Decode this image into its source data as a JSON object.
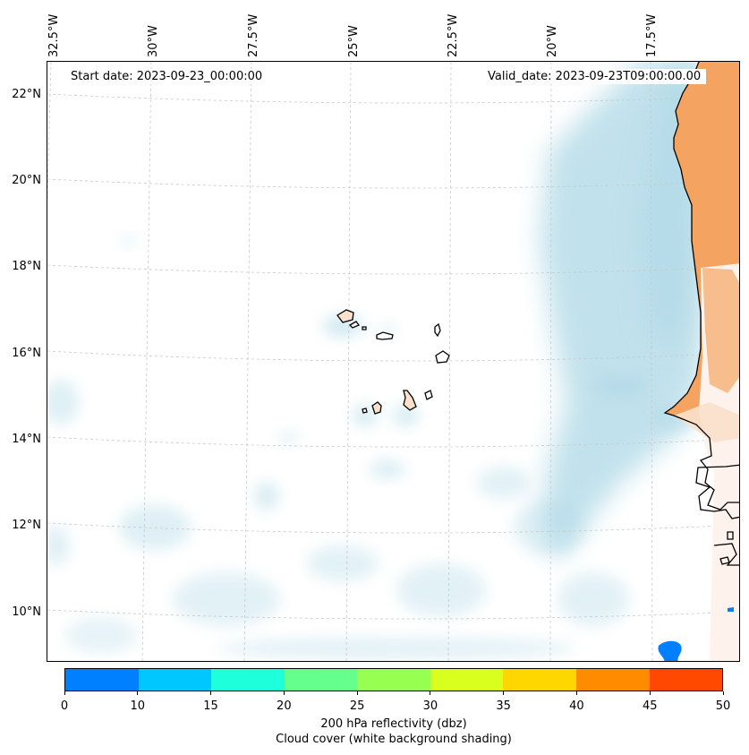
{
  "map": {
    "start_date_label": "Start date: 2023-09-23_00:00:00",
    "valid_date_label": "Valid_date: 2023-09-23T09:00:00.00",
    "lon_labels": [
      "32.5°W",
      "30°W",
      "27.5°W",
      "25°W",
      "22.5°W",
      "20°W",
      "17.5°W"
    ],
    "lat_labels": [
      "22°N",
      "20°N",
      "18°N",
      "16°N",
      "14°N",
      "12°N",
      "10°N"
    ],
    "colors": {
      "land": "#f4a460",
      "land_light": "#fbe0cc",
      "cloud": "#add8e6",
      "coastline": "#000000",
      "gridline": "#c8c8c8",
      "echo": "#0080ff"
    }
  },
  "colorbar": {
    "title_line1": "200 hPa reflectivity (dbz)",
    "title_line2": "Cloud cover (white background shading)",
    "tick_labels": [
      "0",
      "10",
      "15",
      "20",
      "25",
      "30",
      "35",
      "40",
      "45",
      "50"
    ],
    "colors": [
      "#0080ff",
      "#00c8ff",
      "#1effdc",
      "#64ff8c",
      "#96ff50",
      "#d8ff1e",
      "#ffd700",
      "#ff8c00",
      "#ff4800"
    ]
  }
}
